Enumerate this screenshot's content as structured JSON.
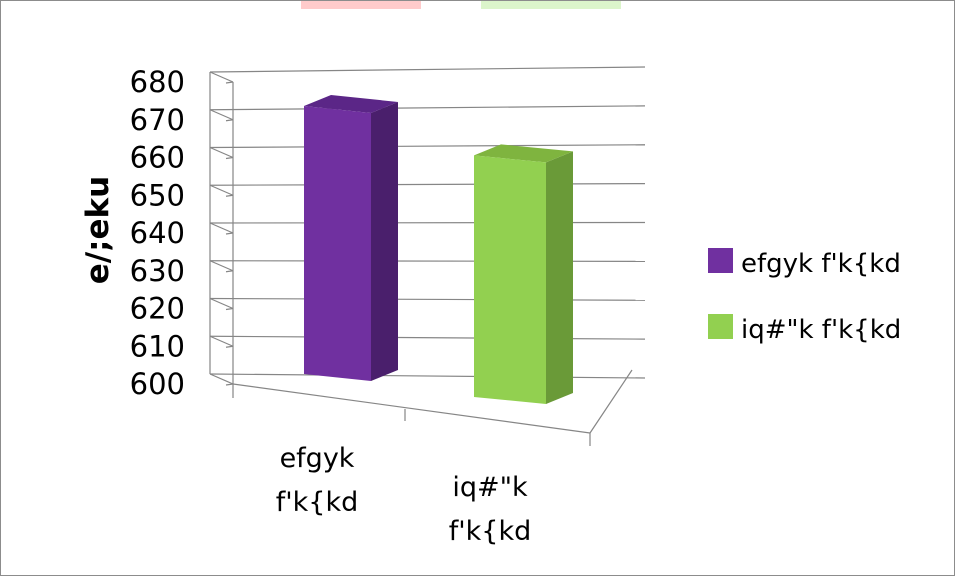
{
  "colors": {
    "series1_front": "#7030a0",
    "series1_side": "#4a1f6c",
    "series1_top": "#5b2687",
    "series2_front": "#92d050",
    "series2_side": "#6a9a38",
    "series2_top": "#7fb43f",
    "grid": "#868686"
  },
  "chart_data": {
    "type": "bar",
    "title": "",
    "xlabel": "",
    "ylabel": "e/;eku",
    "ylim": [
      600,
      680
    ],
    "ytick_step": 10,
    "yticks": [
      "600",
      "610",
      "620",
      "630",
      "640",
      "650",
      "660",
      "670",
      "680"
    ],
    "grid": true,
    "legend_position": "right",
    "categories": [
      "efgyk f'k{kd",
      "iq#\"k f'k{kd"
    ],
    "category_lines": [
      [
        "efgyk",
        "f'k{kd"
      ],
      [
        "iq#\"k",
        "f'k{kd"
      ]
    ],
    "series": [
      {
        "name": "efgyk f'k{kd",
        "values": [
          671,
          null
        ]
      },
      {
        "name": "iq#\"k f'k{kd",
        "values": [
          null,
          664
        ]
      }
    ]
  }
}
